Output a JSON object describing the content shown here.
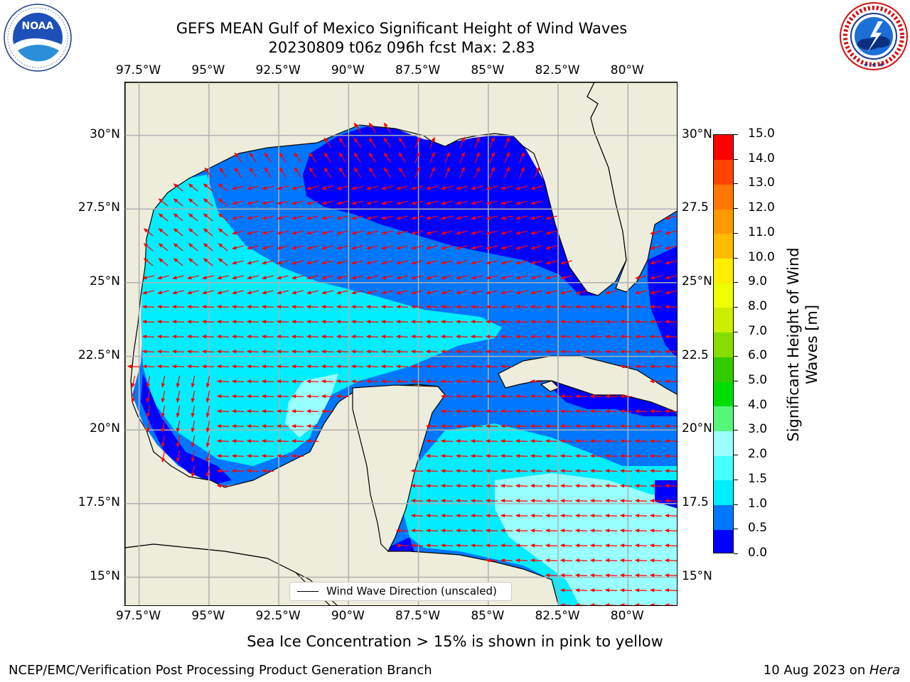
{
  "title": {
    "line1": "GEFS MEAN Gulf of Mexico Significant Height of Wind Waves",
    "line2": "20230809 t06z 096h fcst   Max: 2.83"
  },
  "logos": {
    "noaa_text": "NOAA",
    "noaa_ring": "NATIONAL OCEANIC AND ATMOSPHERIC ADMINISTRATION · U.S. DEPARTMENT OF COMMERCE",
    "nws_ring": "NATIONAL WEATHER SERVICE"
  },
  "map": {
    "lon_labels": [
      "97.5°W",
      "95°W",
      "92.5°W",
      "90°W",
      "87.5°W",
      "85°W",
      "82.5°W",
      "80°W"
    ],
    "lat_labels_left": [
      "30°N",
      "27.5°N",
      "25°N",
      "22.5°N",
      "20°N",
      "17.5°N",
      "15°N"
    ],
    "lat_labels_right": [
      "30°N",
      "27.5",
      "25°N",
      "22.5",
      "20°N",
      "17.5",
      "15°N"
    ],
    "extent": {
      "lon": [
        -98,
        -78.2
      ],
      "lat": [
        14,
        31.8
      ]
    },
    "land_color": "#eeecdb",
    "arrow_color": "#ff0000",
    "legend_label": "Wind Wave Direction (unscaled)"
  },
  "colorbar": {
    "title_line1": "Significant Height of Wind",
    "title_line2": "Waves [m]",
    "labels": [
      "0.0",
      "0.5",
      "1.0",
      "1.5",
      "2.0",
      "3.0",
      "4.0",
      "5.0",
      "6.0",
      "7.0",
      "8.0",
      "9.0",
      "10.0",
      "11.0",
      "12.0",
      "13.0",
      "14.0",
      "15.0"
    ],
    "colors": [
      "#0000ff",
      "#0077ff",
      "#00eeff",
      "#44ffff",
      "#99ffff",
      "#55f77a",
      "#00dd00",
      "#33cc00",
      "#88dd00",
      "#ccee00",
      "#eeff00",
      "#ffee00",
      "#ffbb00",
      "#ff9900",
      "#ff7700",
      "#ff4400",
      "#ff0000"
    ]
  },
  "footer": {
    "note": "Sea Ice Concentration > 15% is shown in pink to yellow",
    "left": "NCEP/EMC/Verification Post Processing Product Generation Branch",
    "right_date": "10 Aug 2023 on ",
    "right_host": "Hera"
  }
}
